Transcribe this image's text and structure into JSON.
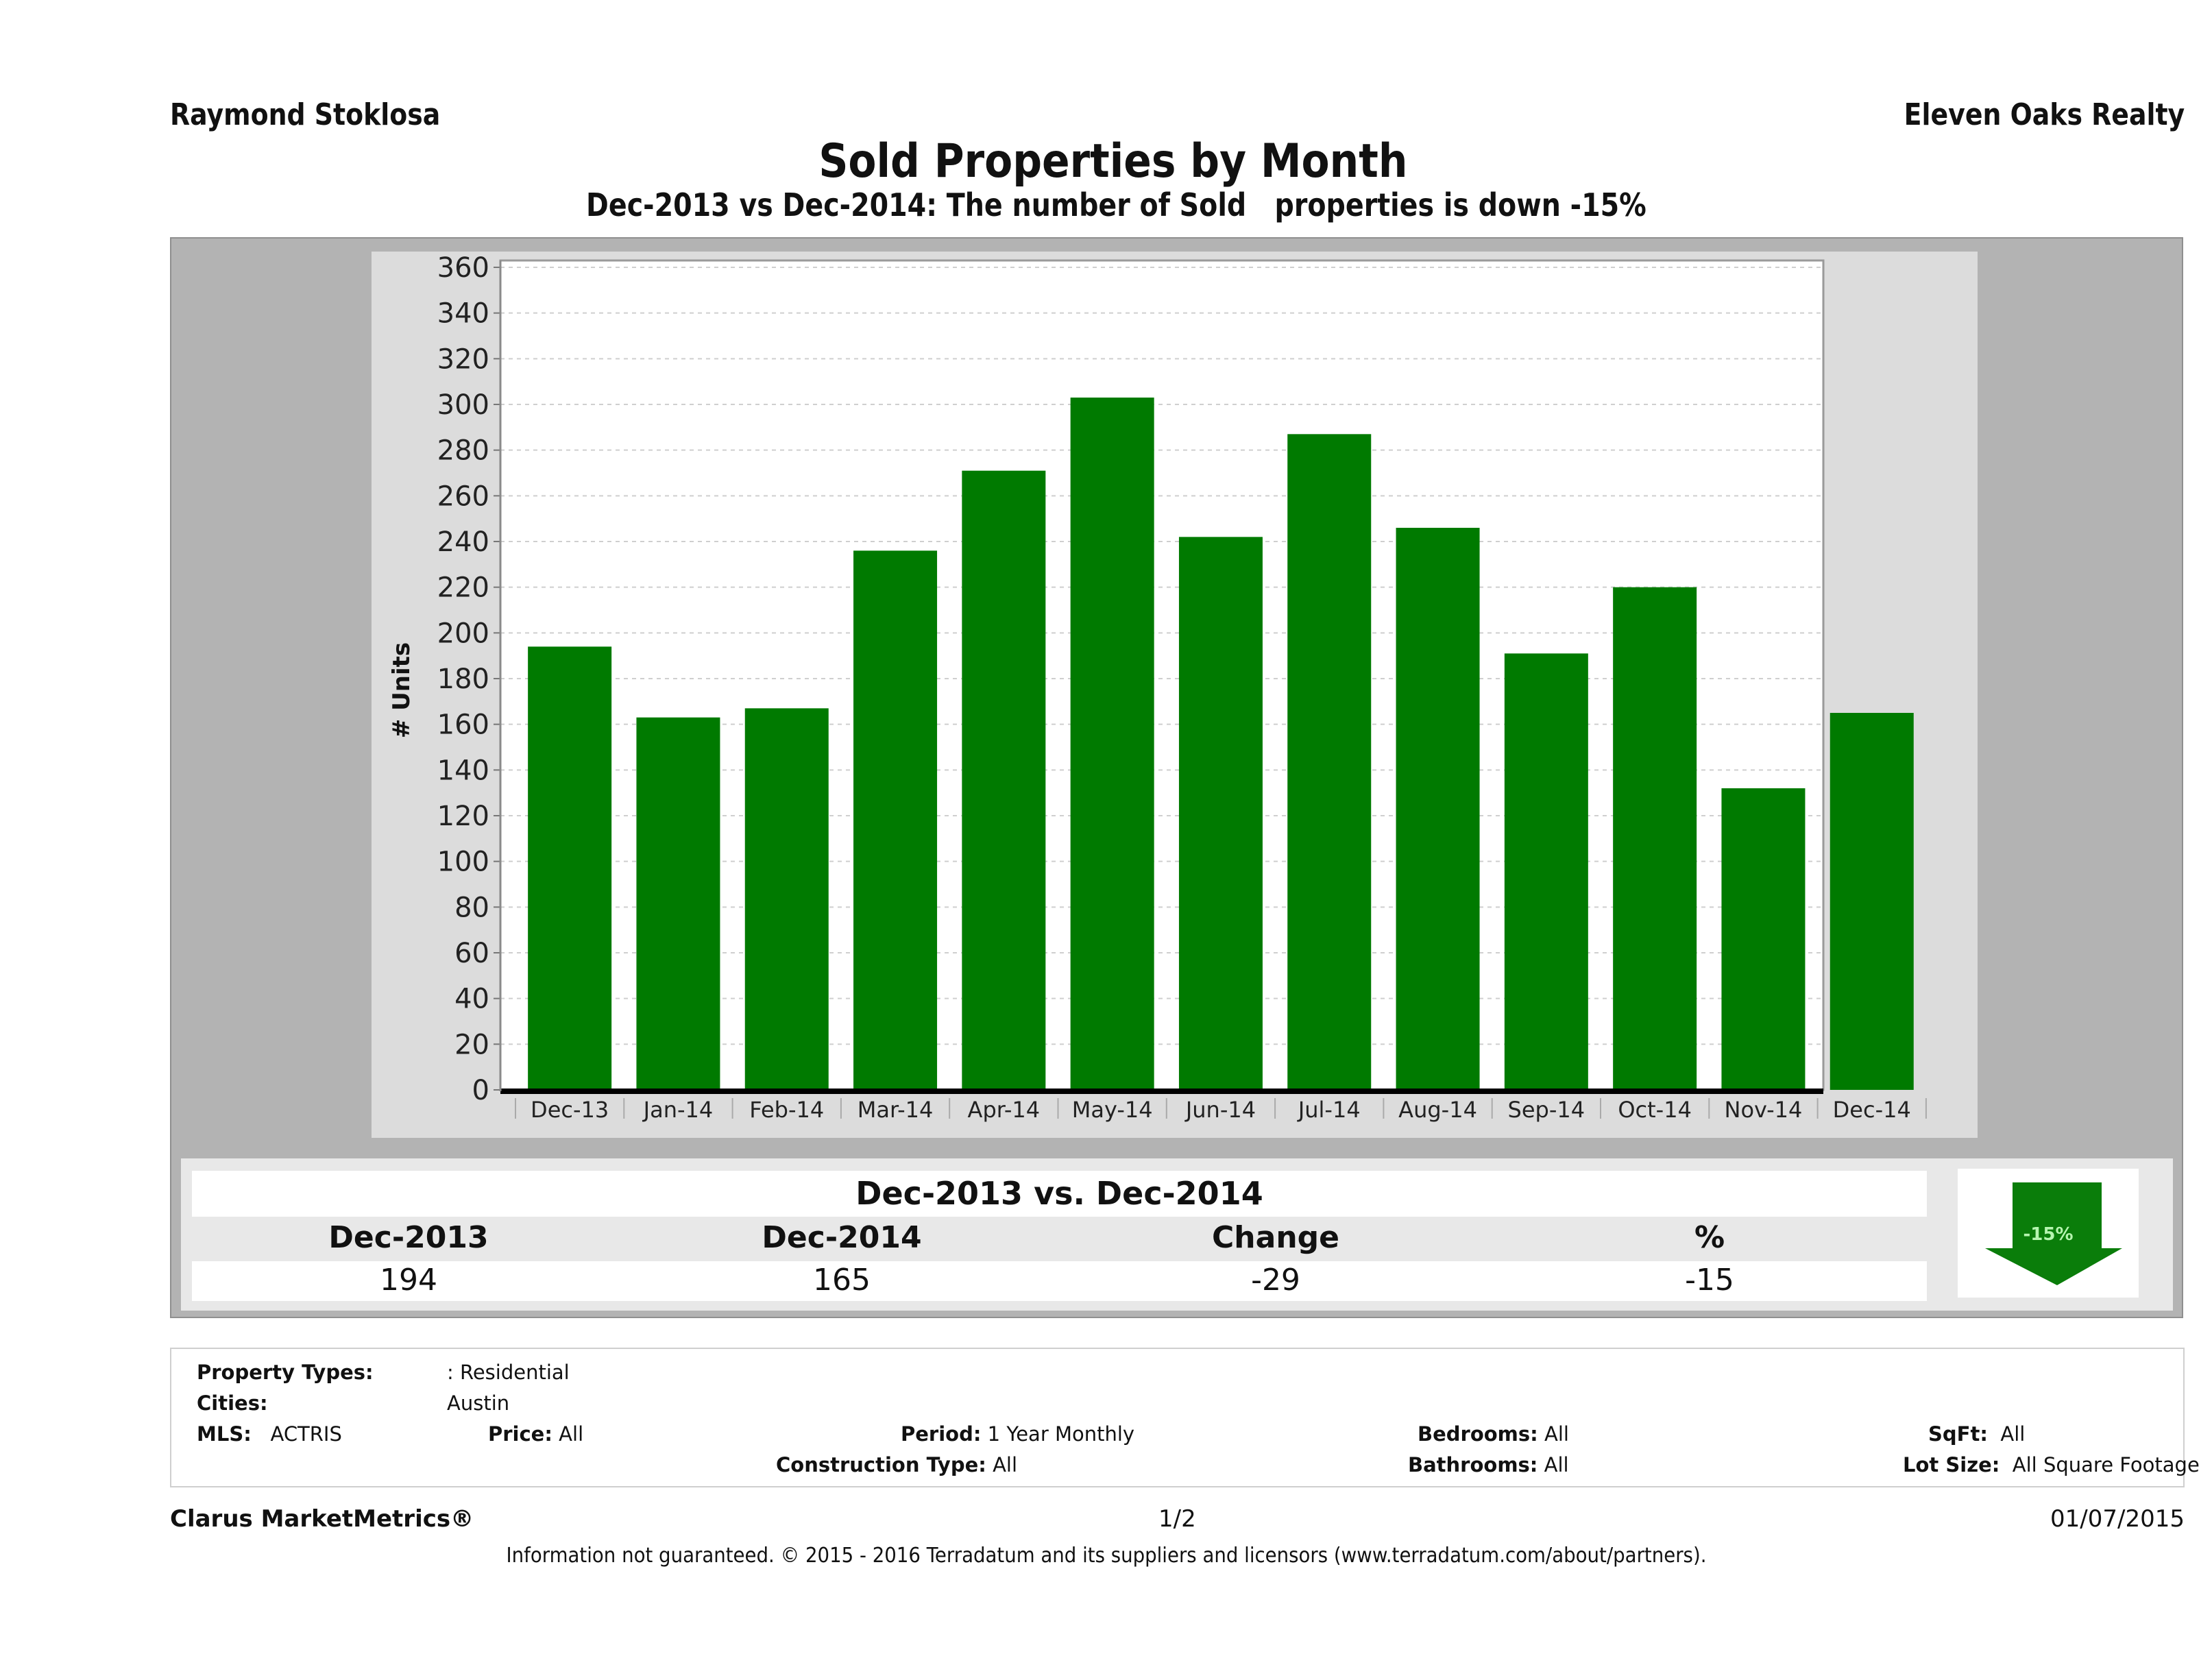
{
  "header": {
    "agent_name": "Raymond Stoklosa",
    "brokerage": "Eleven Oaks Realty",
    "title": "Sold Properties by Month",
    "subtitle": "Dec-2013 vs Dec-2014: The number of Sold   properties is down -15%"
  },
  "colors": {
    "bar": "#007a00",
    "arrow": "#0a7d0a",
    "arrow_text": "#b6f5b0",
    "outer_panel": "#b3b3b3",
    "chart_panel": "#dcdcdc"
  },
  "chart_data": {
    "type": "bar",
    "title": "Sold Properties by Month",
    "xlabel": "",
    "ylabel": "# Units",
    "categories": [
      "Dec-13",
      "Jan-14",
      "Feb-14",
      "Mar-14",
      "Apr-14",
      "May-14",
      "Jun-14",
      "Jul-14",
      "Aug-14",
      "Sep-14",
      "Oct-14",
      "Nov-14",
      "Dec-14"
    ],
    "values": [
      194,
      163,
      167,
      236,
      271,
      303,
      242,
      287,
      246,
      191,
      220,
      132,
      165
    ],
    "ylim": [
      0,
      360
    ],
    "yticks": [
      0,
      20,
      40,
      60,
      80,
      100,
      120,
      140,
      160,
      180,
      200,
      220,
      240,
      260,
      280,
      300,
      320,
      340,
      360
    ],
    "grid": true,
    "legend": "none"
  },
  "summary": {
    "title": "Dec-2013 vs. Dec-2014",
    "headers": [
      "Dec-2013",
      "Dec-2014",
      "Change",
      "%"
    ],
    "values": [
      "194",
      "165",
      "-29",
      "-15"
    ],
    "badge": "-15%",
    "trend_icon": "down-arrow-icon"
  },
  "filters": {
    "property_types_label": "Property Types:",
    "property_types_value": ": Residential",
    "cities_label": "Cities:",
    "cities_value": "Austin",
    "mls_label": "MLS:",
    "mls_value": "ACTRIS",
    "price_label": "Price:",
    "price_value": "All",
    "period_label": "Period:",
    "period_value": "1 Year Monthly",
    "construction_label": "Construction Type:",
    "construction_value": "All",
    "bedrooms_label": "Bedrooms:",
    "bedrooms_value": "All",
    "bathrooms_label": "Bathrooms:",
    "bathrooms_value": "All",
    "sqft_label": "SqFt:",
    "sqft_value": "All",
    "lotsize_label": "Lot Size:",
    "lotsize_value": "All Square Footage"
  },
  "footer": {
    "brand": "Clarus MarketMetrics®",
    "page": "1/2",
    "date": "01/07/2015",
    "disclaimer": "Information not guaranteed. © 2015 - 2016 Terradatum and its suppliers and licensors (www.terradatum.com/about/partners)."
  }
}
